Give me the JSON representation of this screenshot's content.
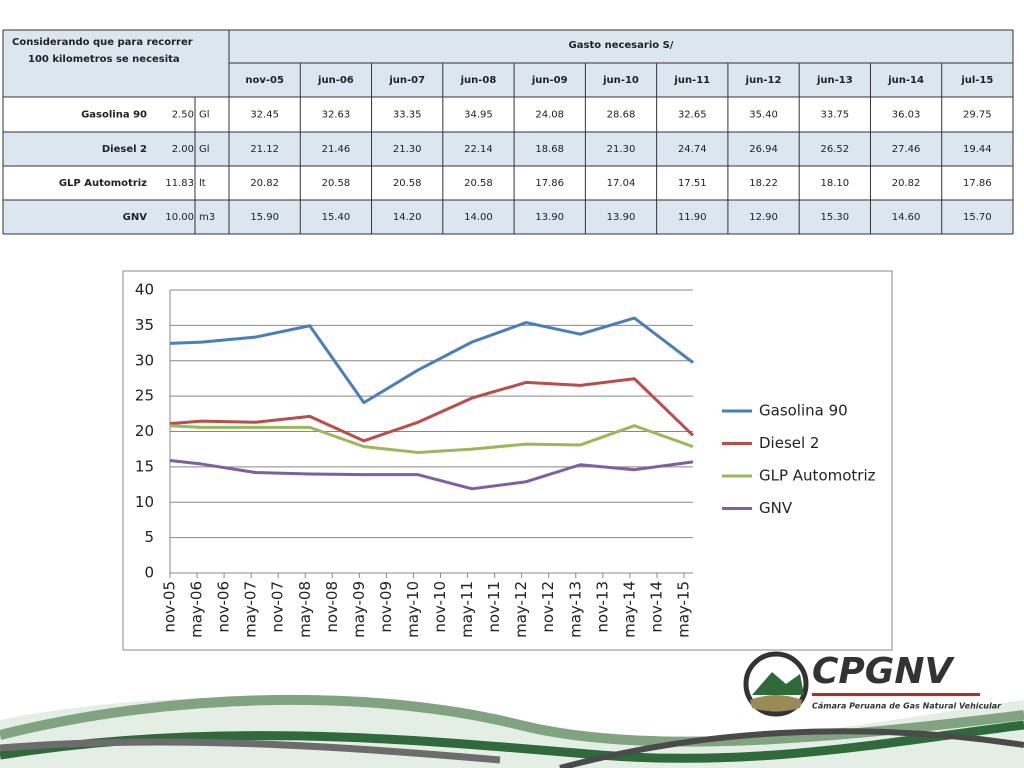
{
  "table": {
    "corner": [
      "Considerando que para  recorrer",
      "100 kilometros se necesita"
    ],
    "group": "Gasto necesario S/",
    "columns": [
      "nov-05",
      "jun-06",
      "jun-07",
      "jun-08",
      "jun-09",
      "jun-10",
      "jun-11",
      "jun-12",
      "jun-13",
      "jun-14",
      "jul-15"
    ],
    "rows": [
      {
        "name": "Gasolina 90",
        "qty": "2.50",
        "unit": "Gl",
        "values": [
          "32.45",
          "32.63",
          "33.35",
          "34.95",
          "24.08",
          "28.68",
          "32.65",
          "35.40",
          "33.75",
          "36.03",
          "29.75"
        ]
      },
      {
        "name": "Diesel 2",
        "qty": "2.00",
        "unit": "Gl",
        "values": [
          "21.12",
          "21.46",
          "21.30",
          "22.14",
          "18.68",
          "21.30",
          "24.74",
          "26.94",
          "26.52",
          "27.46",
          "19.44"
        ]
      },
      {
        "name": "GLP Automotriz",
        "qty": "11.83",
        "unit": "lt",
        "values": [
          "20.82",
          "20.58",
          "20.58",
          "20.58",
          "17.86",
          "17.04",
          "17.51",
          "18.22",
          "18.10",
          "20.82",
          "17.86"
        ]
      },
      {
        "name": "GNV",
        "qty": "10.00",
        "unit": "m3",
        "values": [
          "15.90",
          "15.40",
          "14.20",
          "14.00",
          "13.90",
          "13.90",
          "11.90",
          "12.90",
          "15.30",
          "14.60",
          "15.70"
        ]
      }
    ]
  },
  "chart_data": {
    "type": "line",
    "x": [
      0,
      7,
      19,
      31,
      43,
      55,
      67,
      79,
      91,
      103,
      116
    ],
    "xlim": [
      0,
      116
    ],
    "xticks": [
      {
        "value": 0,
        "label": "nov-05"
      },
      {
        "value": 6,
        "label": "may-06"
      },
      {
        "value": 12,
        "label": "nov-06"
      },
      {
        "value": 18,
        "label": "may-07"
      },
      {
        "value": 24,
        "label": "nov-07"
      },
      {
        "value": 30,
        "label": "may-08"
      },
      {
        "value": 36,
        "label": "nov-08"
      },
      {
        "value": 42,
        "label": "may-09"
      },
      {
        "value": 48,
        "label": "nov-09"
      },
      {
        "value": 54,
        "label": "may-10"
      },
      {
        "value": 60,
        "label": "nov-10"
      },
      {
        "value": 66,
        "label": "may-11"
      },
      {
        "value": 72,
        "label": "nov-11"
      },
      {
        "value": 78,
        "label": "may-12"
      },
      {
        "value": 84,
        "label": "nov-12"
      },
      {
        "value": 90,
        "label": "may-13"
      },
      {
        "value": 96,
        "label": "nov-13"
      },
      {
        "value": 102,
        "label": "may-14"
      },
      {
        "value": 108,
        "label": "nov-14"
      },
      {
        "value": 114,
        "label": "may-15"
      }
    ],
    "ylim": [
      0,
      40
    ],
    "yticks": [
      0,
      5,
      10,
      15,
      20,
      25,
      30,
      35,
      40
    ],
    "grid": true,
    "legend": "right",
    "series": [
      {
        "name": "Gasolina 90",
        "color": "#4a7ebb",
        "values": [
          32.45,
          32.63,
          33.35,
          34.95,
          24.08,
          28.68,
          32.65,
          35.4,
          33.75,
          36.03,
          29.75
        ]
      },
      {
        "name": "Diesel 2",
        "color": "#be4b48",
        "values": [
          21.12,
          21.46,
          21.3,
          22.14,
          18.68,
          21.3,
          24.74,
          26.94,
          26.52,
          27.46,
          19.44
        ]
      },
      {
        "name": "GLP Automotriz",
        "color": "#98b954",
        "values": [
          20.82,
          20.58,
          20.58,
          20.58,
          17.86,
          17.04,
          17.51,
          18.22,
          18.1,
          20.82,
          17.86
        ]
      },
      {
        "name": "GNV",
        "color": "#7d60a0",
        "values": [
          15.9,
          15.4,
          14.2,
          14.0,
          13.9,
          13.9,
          11.9,
          12.9,
          15.3,
          14.6,
          15.7
        ]
      }
    ]
  },
  "logo": {
    "name": "CPGNV",
    "tagline": "Cámara Peruana de Gas Natural Vehicular"
  }
}
